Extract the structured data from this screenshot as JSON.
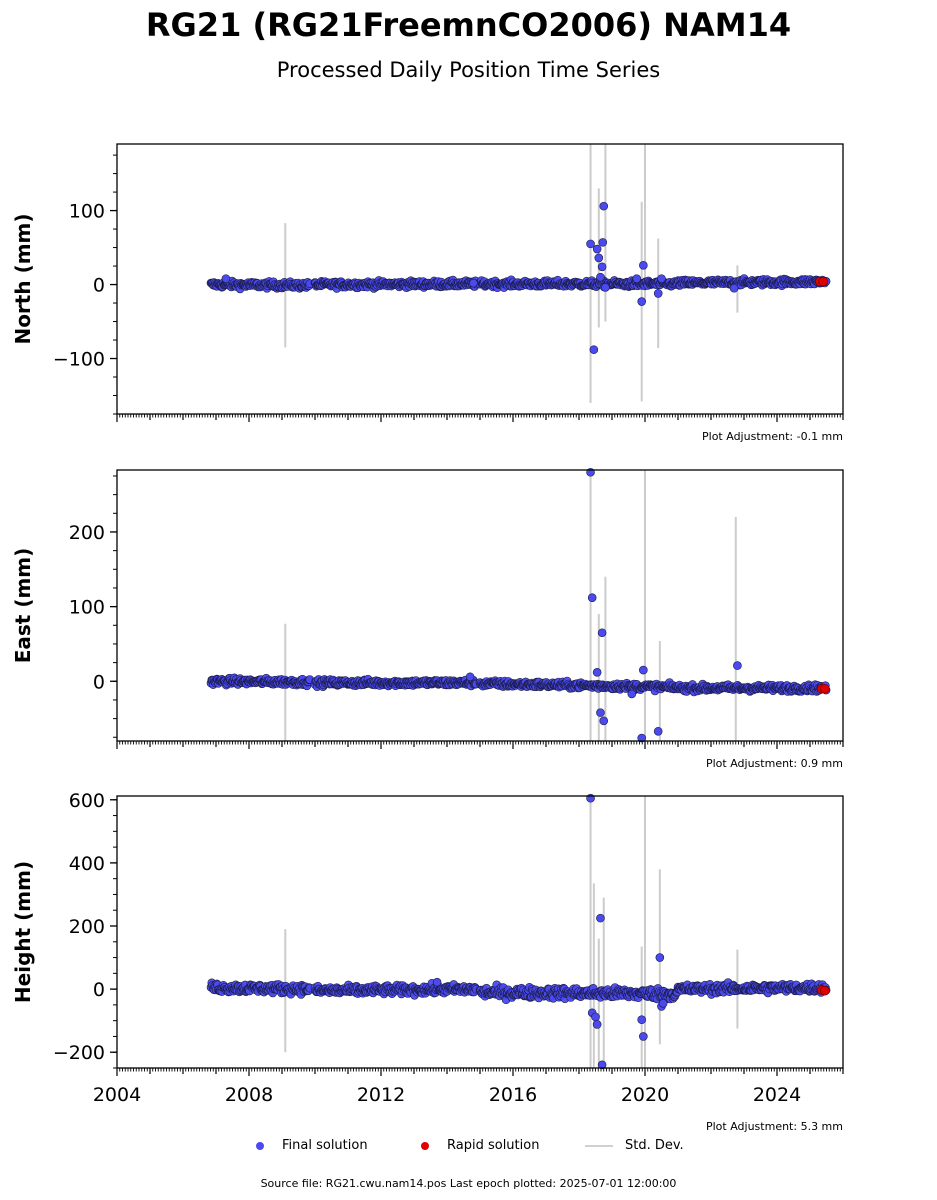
{
  "header": {
    "title": "RG21 (RG21FreemnCO2006) NAM14",
    "subtitle": "Processed Daily Position Time Series"
  },
  "legend": {
    "final_label": "Final solution",
    "rapid_label": "Rapid solution",
    "std_label": "Std. Dev."
  },
  "footer": {
    "text": "Source file: RG21.cwu.nam14.pos  Last epoch plotted: 2025-07-01 12:00:00"
  },
  "colors": {
    "final": "#4a4aee",
    "final_edge": "#1a1a44",
    "rapid": "#e00000",
    "stddev": "#cccccc"
  },
  "chart_data": [
    {
      "type": "scatter",
      "ylabel": "North (mm)",
      "xlim": [
        2004.0,
        2026.0
      ],
      "ylim": [
        -175,
        190
      ],
      "yticks": [
        -100,
        0,
        100
      ],
      "adjustment": "Plot Adjustment: -0.1 mm",
      "segments": [
        [
          2006.85,
          2009.85,
          0.0,
          -1.0,
          3
        ],
        [
          2010.0,
          2014.9,
          0.0,
          1.0,
          3
        ],
        [
          2015.0,
          2021.0,
          1.0,
          1.0,
          3
        ],
        [
          2021.0,
          2025.5,
          2.0,
          4.0,
          3
        ]
      ],
      "outliers": [
        [
          2007.3,
          8
        ],
        [
          2014.8,
          2
        ],
        [
          2018.35,
          55
        ],
        [
          2018.45,
          -88
        ],
        [
          2018.55,
          48
        ],
        [
          2018.6,
          36
        ],
        [
          2018.65,
          10
        ],
        [
          2018.7,
          24
        ],
        [
          2018.72,
          57
        ],
        [
          2018.75,
          106
        ],
        [
          2018.8,
          -4
        ],
        [
          2019.75,
          8
        ],
        [
          2019.9,
          -23
        ],
        [
          2019.95,
          26
        ],
        [
          2020.4,
          -12
        ],
        [
          2020.5,
          8
        ],
        [
          2022.7,
          -5
        ]
      ],
      "errorbars": [
        [
          2009.1,
          83,
          -85
        ],
        [
          2018.35,
          190,
          -160
        ],
        [
          2018.6,
          130,
          -58
        ],
        [
          2018.8,
          190,
          -50
        ],
        [
          2019.9,
          112,
          -158
        ],
        [
          2020.0,
          190,
          -20
        ],
        [
          2020.4,
          62,
          -86
        ],
        [
          2022.8,
          26,
          -38
        ]
      ],
      "rapid": [
        [
          2025.3,
          4
        ],
        [
          2025.4,
          4
        ]
      ]
    },
    {
      "type": "scatter",
      "ylabel": "East (mm)",
      "xlim": [
        2004.0,
        2026.0
      ],
      "ylim": [
        -80,
        283
      ],
      "yticks": [
        0,
        100,
        200
      ],
      "adjustment": "Plot Adjustment: 0.9 mm",
      "segments": [
        [
          2006.85,
          2009.85,
          0.0,
          -1.0,
          3
        ],
        [
          2010.0,
          2014.9,
          -2.0,
          -2.0,
          3
        ],
        [
          2015.0,
          2021.0,
          -3.0,
          -8.0,
          3
        ],
        [
          2021.0,
          2025.5,
          -9.0,
          -9.0,
          3
        ]
      ],
      "outliers": [
        [
          2014.7,
          6
        ],
        [
          2018.35,
          280
        ],
        [
          2018.4,
          112
        ],
        [
          2018.55,
          12
        ],
        [
          2018.65,
          -42
        ],
        [
          2018.7,
          65
        ],
        [
          2018.75,
          -53
        ],
        [
          2019.6,
          -17
        ],
        [
          2019.9,
          -76
        ],
        [
          2019.95,
          15
        ],
        [
          2020.4,
          -67
        ],
        [
          2022.8,
          21
        ]
      ],
      "errorbars": [
        [
          2009.1,
          77,
          -80
        ],
        [
          2018.35,
          283,
          -80
        ],
        [
          2018.6,
          90,
          -80
        ],
        [
          2018.8,
          140,
          -80
        ],
        [
          2020.0,
          283,
          -80
        ],
        [
          2020.45,
          54,
          -80
        ],
        [
          2022.75,
          220,
          -80
        ]
      ],
      "rapid": [
        [
          2025.35,
          -10
        ],
        [
          2025.45,
          -10
        ]
      ]
    },
    {
      "type": "scatter",
      "ylabel": "Height (mm)",
      "xlim": [
        2004.0,
        2026.0
      ],
      "ylim": [
        -250,
        612
      ],
      "yticks": [
        -200,
        0,
        200,
        400,
        600
      ],
      "xticks": [
        2004,
        2008,
        2012,
        2016,
        2020,
        2024
      ],
      "adjustment": "Plot Adjustment: 5.3 mm",
      "segments": [
        [
          2006.85,
          2009.85,
          5.0,
          0.0,
          10
        ],
        [
          2010.0,
          2014.9,
          -5.0,
          0.0,
          10
        ],
        [
          2015.0,
          2021.0,
          -10.0,
          -15.0,
          12
        ],
        [
          2021.0,
          2025.5,
          0.0,
          5.0,
          10
        ]
      ],
      "outliers": [
        [
          2013.7,
          22
        ],
        [
          2018.35,
          605
        ],
        [
          2018.4,
          -75
        ],
        [
          2018.5,
          -88
        ],
        [
          2018.55,
          -112
        ],
        [
          2018.65,
          225
        ],
        [
          2018.7,
          -240
        ],
        [
          2019.9,
          -97
        ],
        [
          2019.95,
          -150
        ],
        [
          2020.45,
          100
        ],
        [
          2020.5,
          -55
        ],
        [
          2020.55,
          -45
        ]
      ],
      "errorbars": [
        [
          2009.1,
          190,
          -200
        ],
        [
          2018.35,
          612,
          -250
        ],
        [
          2018.45,
          335,
          -250
        ],
        [
          2018.6,
          160,
          -250
        ],
        [
          2018.75,
          290,
          -250
        ],
        [
          2019.9,
          135,
          -250
        ],
        [
          2020.0,
          612,
          -250
        ],
        [
          2020.45,
          380,
          -175
        ],
        [
          2022.8,
          125,
          -125
        ]
      ],
      "rapid": [
        [
          2025.35,
          -3
        ],
        [
          2025.45,
          -5
        ]
      ]
    }
  ]
}
